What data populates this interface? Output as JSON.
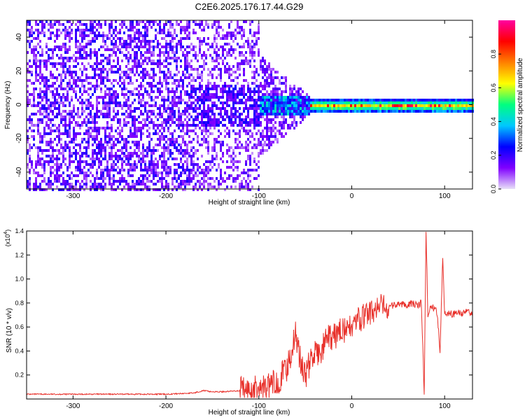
{
  "title": "C2E6.2025.176.17.44.G29",
  "chart_data": [
    {
      "type": "heatmap",
      "xlabel": "Height of straight line (km)",
      "ylabel": "Frequency (Hz)",
      "xlim": [
        -350,
        130
      ],
      "ylim": [
        -50,
        50
      ],
      "xticks": [
        -300,
        -200,
        -100,
        0,
        100
      ],
      "yticks": [
        -40,
        -20,
        0,
        20,
        40
      ],
      "colorbar": {
        "label": "Normalized spectral amplitude",
        "range": [
          0,
          1
        ],
        "ticks": [
          "0.0",
          "0.2",
          "0.4",
          "0.6",
          "0.8"
        ],
        "colors": [
          "#e8e0f8",
          "#8000ff",
          "#0000ff",
          "#00c8ff",
          "#00ff80",
          "#ffff00",
          "#ff8000",
          "#ff0000",
          "#ff00a0"
        ]
      },
      "regions": [
        {
          "x_range": [
            -350,
            -175
          ],
          "freq_spread": 50,
          "amplitude": 0.15
        },
        {
          "x_range": [
            -175,
            -100
          ],
          "freq_spread": 50,
          "amplitude": 0.12
        },
        {
          "x_range": [
            -100,
            -50
          ],
          "freq_spread": 25,
          "amplitude": 0.2
        },
        {
          "x_range": [
            -50,
            130
          ],
          "freq_spread": 4,
          "amplitude": 0.55
        }
      ]
    },
    {
      "type": "line",
      "xlabel": "Height of straight line (km)",
      "ylabel": "SNR (10 * v/v)",
      "yscale_label": "(x10",
      "yscale_exp": "4",
      "xlim": [
        -350,
        130
      ],
      "ylim": [
        0,
        1.4
      ],
      "xticks": [
        -300,
        -200,
        -100,
        0,
        100
      ],
      "yticks": [
        "0.2",
        "0.4",
        "0.6",
        "0.8",
        "1.0",
        "1.2",
        "1.4"
      ],
      "color": "#e8302a",
      "series": [
        {
          "x": [
            -350,
            -300,
            -250,
            -200,
            -170,
            -160,
            -150,
            -140,
            -120,
            -100,
            -90,
            -80,
            -70,
            -65,
            -60,
            -55,
            -50,
            -45,
            -40,
            -35,
            -30,
            -25,
            -20,
            -15,
            -10,
            -5,
            0,
            5,
            10,
            15,
            20,
            25,
            30,
            35,
            40,
            45,
            50,
            55,
            60,
            65,
            70,
            75,
            78,
            80,
            82,
            85,
            88,
            90,
            92,
            95,
            98,
            100,
            105,
            110,
            115,
            120,
            125,
            130
          ],
          "y": [
            0.04,
            0.04,
            0.04,
            0.04,
            0.05,
            0.07,
            0.06,
            0.06,
            0.07,
            0.08,
            0.1,
            0.15,
            0.25,
            0.4,
            0.55,
            0.3,
            0.2,
            0.3,
            0.4,
            0.35,
            0.45,
            0.5,
            0.5,
            0.55,
            0.6,
            0.55,
            0.62,
            0.65,
            0.66,
            0.7,
            0.72,
            0.74,
            0.76,
            0.76,
            0.77,
            0.78,
            0.79,
            0.79,
            0.79,
            0.8,
            0.78,
            0.8,
            0.05,
            1.4,
            0.7,
            0.78,
            0.76,
            0.74,
            0.72,
            0.4,
            1.2,
            0.72,
            0.71,
            0.71,
            0.72,
            0.72,
            0.72,
            0.72
          ]
        }
      ]
    }
  ]
}
